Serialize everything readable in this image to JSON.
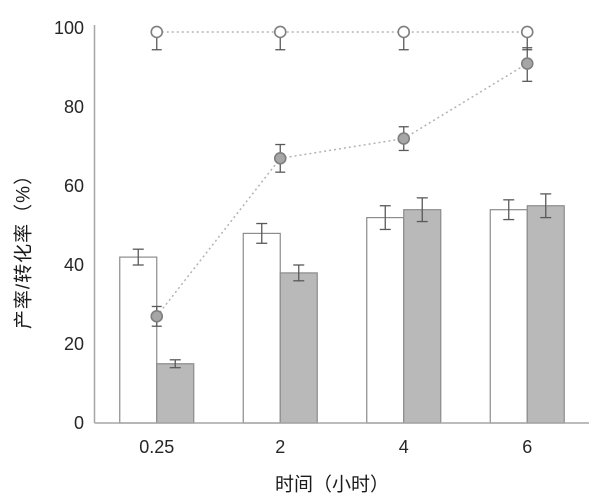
{
  "chart_data": {
    "type": "bar",
    "title": "",
    "xlabel": "时间（小时）",
    "ylabel": "产率/转化率（%）",
    "categories": [
      "0.25",
      "2",
      "4",
      "6"
    ],
    "ylim": [
      0,
      100
    ],
    "yticks": [
      0,
      20,
      40,
      60,
      80,
      100
    ],
    "grid": false,
    "legend": "none",
    "series": [
      {
        "name": "white-bar-series",
        "kind": "bar",
        "values": [
          42,
          48,
          52,
          54
        ],
        "err": [
          2,
          2.5,
          3,
          2.5
        ],
        "fill": "#ffffff",
        "stroke": "#8c8c8c"
      },
      {
        "name": "gray-bar-series",
        "kind": "bar",
        "values": [
          15,
          38,
          54,
          55
        ],
        "err": [
          1,
          2,
          3,
          3
        ],
        "fill": "#b9b9b9",
        "stroke": "#8c8c8c"
      },
      {
        "name": "gray-filled-circle-line",
        "kind": "line",
        "values": [
          27,
          67,
          72,
          91
        ],
        "err_up": [
          2.5,
          3.5,
          3,
          4
        ],
        "err_down": [
          2.5,
          3.5,
          3,
          4.5
        ],
        "marker": "filled-circle",
        "line_color": "#b3b3b3"
      },
      {
        "name": "open-circle-line",
        "kind": "line",
        "values": [
          99,
          99,
          99,
          99
        ],
        "err_up": [
          0,
          0,
          0,
          0
        ],
        "err_down": [
          4.5,
          4.5,
          4.5,
          4.5
        ],
        "marker": "open-circle",
        "line_color": "#b3b3b3"
      }
    ],
    "colors": {
      "axis": "#a6a6a6",
      "error_bar": "#595959",
      "tick_text": "#262626",
      "marker_stroke": "#7f7f7f",
      "marker_fill_gray": "#a6a6a6",
      "marker_fill_white": "#ffffff"
    }
  }
}
